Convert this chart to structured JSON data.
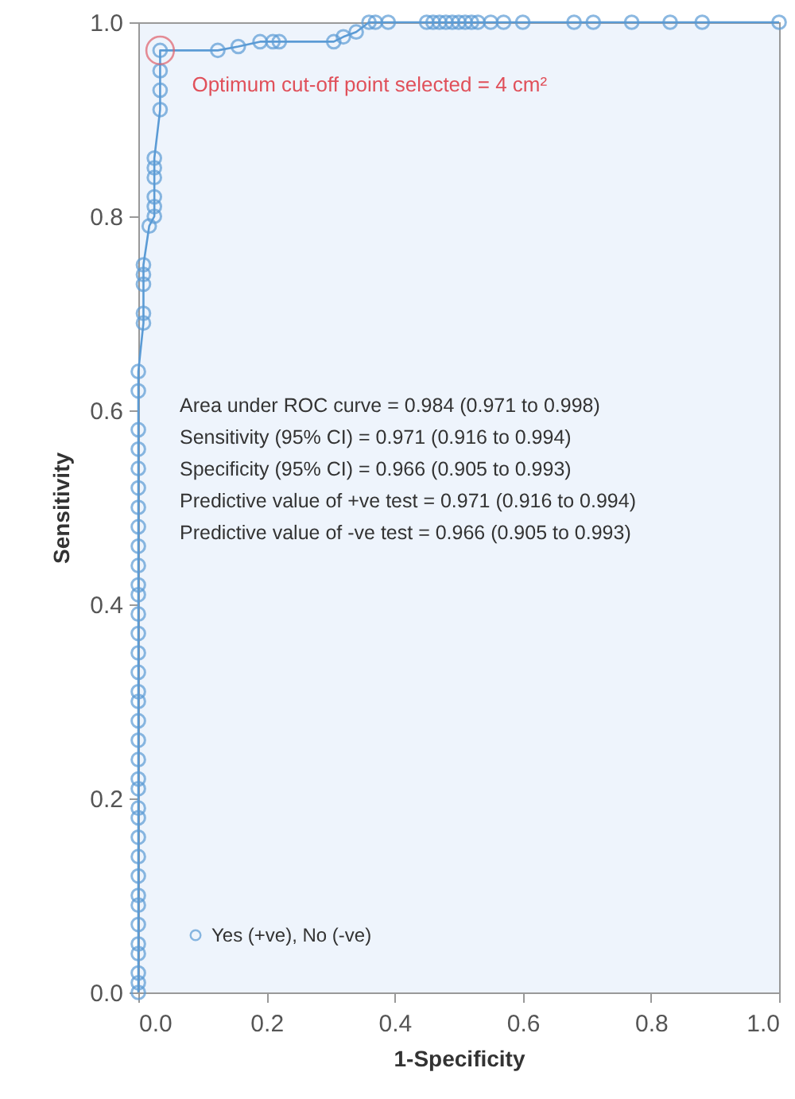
{
  "chart_data": {
    "type": "line",
    "xlabel": "1-Specificity",
    "ylabel": "Sensitivity",
    "series": [
      {
        "name": "Yes (+ve), No (-ve)",
        "color": "#5b9bd5",
        "x": [
          0,
          0,
          0,
          0,
          0,
          0,
          0,
          0,
          0,
          0,
          0,
          0,
          0,
          0,
          0,
          0,
          0,
          0,
          0,
          0,
          0,
          0,
          0,
          0,
          0,
          0,
          0,
          0,
          0,
          0,
          0,
          0,
          0,
          0,
          0,
          0,
          0.008,
          0.008,
          0.008,
          0.008,
          0.008,
          0.017,
          0.025,
          0.025,
          0.025,
          0.025,
          0.025,
          0.025,
          0.034,
          0.034,
          0.034,
          0.034,
          0.124,
          0.156,
          0.19,
          0.21,
          0.22,
          0.305,
          0.32,
          0.34,
          0.36,
          0.37,
          0.39,
          0.45,
          0.46,
          0.47,
          0.48,
          0.49,
          0.5,
          0.51,
          0.52,
          0.53,
          0.55,
          0.57,
          0.6,
          0.68,
          0.71,
          0.77,
          0.83,
          0.88,
          1.0
        ],
        "values": [
          0,
          0.01,
          0.02,
          0.04,
          0.05,
          0.07,
          0.09,
          0.1,
          0.12,
          0.14,
          0.16,
          0.18,
          0.19,
          0.21,
          0.22,
          0.24,
          0.26,
          0.28,
          0.3,
          0.31,
          0.33,
          0.35,
          0.37,
          0.39,
          0.41,
          0.42,
          0.44,
          0.46,
          0.48,
          0.5,
          0.52,
          0.54,
          0.56,
          0.58,
          0.62,
          0.64,
          0.69,
          0.7,
          0.73,
          0.74,
          0.75,
          0.79,
          0.8,
          0.81,
          0.82,
          0.84,
          0.85,
          0.86,
          0.91,
          0.93,
          0.95,
          0.971,
          0.971,
          0.975,
          0.98,
          0.98,
          0.98,
          0.98,
          0.985,
          0.99,
          1,
          1,
          1,
          1,
          1,
          1,
          1,
          1,
          1,
          1,
          1,
          1,
          1,
          1,
          1,
          1,
          1,
          1,
          1,
          1,
          1
        ]
      }
    ],
    "marker": "circle",
    "line_style": "solid",
    "grid": false,
    "legend": "bottom left",
    "xlim": [
      0,
      1
    ],
    "ylim": [
      0,
      1
    ],
    "xticks": [
      {
        "value": 0,
        "label": "0.0"
      },
      0.2,
      0.4,
      0.6,
      0.8,
      {
        "value": 1,
        "label": "1.0"
      }
    ],
    "yticks": [
      {
        "value": 0,
        "label": "0.0"
      },
      0.2,
      0.4,
      0.6,
      0.8,
      {
        "value": 1,
        "label": "1.0"
      }
    ],
    "annotations": [
      {
        "text": "Optimum cut-off point selected = 4 cm²",
        "x": 0.034,
        "y": 0.971
      },
      "Area under ROC curve = 0.984 (0.971 to 0.998)",
      "Sensitivity (95% CI) = 0.971 (0.916 to 0.994)",
      "Specificity (95% CI) = 0.966 (0.905 to 0.993)",
      "Predictive value of +ve test = 0.971 (0.916 to 0.994)",
      "Predictive value of -ve test = 0.966 (0.905 to 0.993)"
    ]
  }
}
